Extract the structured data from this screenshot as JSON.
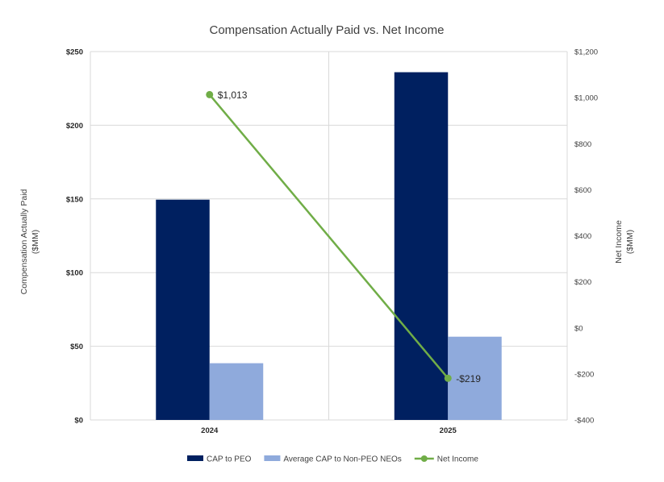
{
  "chart_data": {
    "type": "bar",
    "title": "Compensation Actually Paid vs. Net Income",
    "categories": [
      "2024",
      "2025"
    ],
    "series": [
      {
        "name": "CAP to PEO",
        "type": "bar",
        "axis": "left",
        "color": "#002060",
        "values": [
          149.5,
          236
        ]
      },
      {
        "name": "Average CAP to Non-PEO NEOs",
        "type": "bar",
        "axis": "left",
        "color": "#8faadc",
        "values": [
          38.5,
          56.5
        ]
      },
      {
        "name": "Net Income",
        "type": "line",
        "axis": "right",
        "color": "#70ad47",
        "values": [
          1013,
          -219
        ],
        "labels": [
          "$1,013",
          "-$219"
        ]
      }
    ],
    "y_left": {
      "label_line1": "Compensation Actually Paid",
      "label_line2": "($MM)",
      "range": [
        0,
        250
      ],
      "ticks": [
        0,
        50,
        100,
        150,
        200,
        250
      ],
      "tick_labels": [
        "$0",
        "$50",
        "$100",
        "$150",
        "$200",
        "$250"
      ]
    },
    "y_right": {
      "label_line1": "Net Income",
      "label_line2": "($MM)",
      "range": [
        -400,
        1200
      ],
      "ticks": [
        -400,
        -200,
        0,
        200,
        400,
        600,
        800,
        1000,
        1200
      ],
      "tick_labels": [
        "-$400",
        "-$200",
        "$0",
        "$200",
        "$400",
        "$600",
        "$800",
        "$1,000",
        "$1,200"
      ]
    },
    "grid": true,
    "legend_position": "bottom"
  }
}
